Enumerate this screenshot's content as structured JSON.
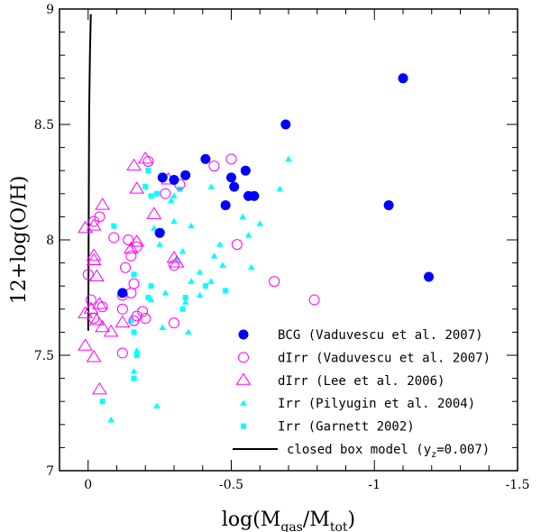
{
  "chart_data": {
    "type": "scatter",
    "title": "",
    "xlabel": "log(M_gas/M_tot)",
    "ylabel": "12+log(O/H)",
    "xlim": [
      0.1,
      -1.5
    ],
    "ylim": [
      7,
      9
    ],
    "x_ticks": [
      0,
      -0.5,
      -1,
      -1.5
    ],
    "x_tick_labels": [
      "0",
      "-0.5",
      "-1",
      "-1.5"
    ],
    "y_ticks": [
      7,
      7.5,
      8,
      8.5,
      9
    ],
    "y_tick_labels": [
      "7",
      "7.5",
      "8",
      "8.5",
      "9"
    ],
    "grid": false,
    "legend_position": "bottom-right",
    "colors": {
      "bcg": "#0000ff",
      "dirr": "#ff00ff",
      "cyan": "#00ffff",
      "model": "#000000"
    },
    "series": [
      {
        "name": "BCG (Vaduvescu et al. 2007)",
        "marker": "filled-circle",
        "color": "#0000ff",
        "points": [
          [
            -1.1,
            8.7
          ],
          [
            -0.69,
            8.5
          ],
          [
            -1.05,
            8.15
          ],
          [
            -1.19,
            7.84
          ],
          [
            -0.41,
            8.35
          ],
          [
            -0.55,
            8.3
          ],
          [
            -0.5,
            8.27
          ],
          [
            -0.51,
            8.23
          ],
          [
            -0.56,
            8.19
          ],
          [
            -0.58,
            8.19
          ],
          [
            -0.48,
            8.15
          ],
          [
            -0.34,
            8.28
          ],
          [
            -0.26,
            8.27
          ],
          [
            -0.3,
            8.26
          ],
          [
            -0.25,
            8.03
          ],
          [
            -0.12,
            7.77
          ]
        ]
      },
      {
        "name": "dIrr (Vaduvescu et al. 2007)",
        "marker": "open-circle",
        "color": "#ff00ff",
        "points": [
          [
            -0.5,
            8.35
          ],
          [
            -0.44,
            8.32
          ],
          [
            -0.21,
            8.34
          ],
          [
            -0.32,
            8.24
          ],
          [
            -0.27,
            8.2
          ],
          [
            -0.04,
            8.1
          ],
          [
            -0.02,
            8.08
          ],
          [
            -0.09,
            8.01
          ],
          [
            -0.14,
            8.0
          ],
          [
            -0.17,
            7.97
          ],
          [
            -0.52,
            7.98
          ],
          [
            -0.15,
            7.93
          ],
          [
            -0.3,
            7.89
          ],
          [
            -0.13,
            7.88
          ],
          [
            0.0,
            7.85
          ],
          [
            -0.16,
            7.81
          ],
          [
            -0.15,
            7.77
          ],
          [
            -0.12,
            7.76
          ],
          [
            -0.01,
            7.74
          ],
          [
            -0.05,
            7.71
          ],
          [
            -0.12,
            7.7
          ],
          [
            -0.19,
            7.69
          ],
          [
            -0.17,
            7.67
          ],
          [
            -0.2,
            7.66
          ],
          [
            -0.16,
            7.65
          ],
          [
            -0.02,
            7.66
          ],
          [
            -0.3,
            7.64
          ],
          [
            -0.65,
            7.82
          ],
          [
            -0.79,
            7.74
          ],
          [
            -0.12,
            7.51
          ]
        ]
      },
      {
        "name": "dIrr (Lee et al. 2006)",
        "marker": "open-triangle",
        "color": "#ff00ff",
        "points": [
          [
            -0.2,
            8.35
          ],
          [
            -0.16,
            8.32
          ],
          [
            -0.28,
            8.26
          ],
          [
            -0.17,
            8.22
          ],
          [
            -0.05,
            8.15
          ],
          [
            -0.23,
            8.11
          ],
          [
            0.01,
            8.05
          ],
          [
            -0.02,
            8.06
          ],
          [
            -0.17,
            7.99
          ],
          [
            -0.15,
            7.96
          ],
          [
            -0.02,
            7.93
          ],
          [
            -0.02,
            7.91
          ],
          [
            -0.03,
            7.84
          ],
          [
            -0.3,
            7.92
          ],
          [
            -0.31,
            7.9
          ],
          [
            -0.04,
            7.72
          ],
          [
            -0.01,
            7.7
          ],
          [
            0.01,
            7.68
          ],
          [
            -0.03,
            7.65
          ],
          [
            -0.05,
            7.62
          ],
          [
            -0.08,
            7.6
          ],
          [
            -0.12,
            7.64
          ],
          [
            0.01,
            7.54
          ],
          [
            -0.02,
            7.49
          ],
          [
            -0.04,
            7.35
          ]
        ]
      },
      {
        "name": "Irr (Pilyugin et al. 2004)",
        "marker": "filled-triangle",
        "color": "#00ffff",
        "points": [
          [
            -0.7,
            8.35
          ],
          [
            -0.67,
            8.22
          ],
          [
            -0.43,
            8.23
          ],
          [
            -0.3,
            8.19
          ],
          [
            -0.29,
            8.17
          ],
          [
            -0.3,
            8.08
          ],
          [
            -0.36,
            8.06
          ],
          [
            -0.26,
            8.04
          ],
          [
            -0.23,
            8.05
          ],
          [
            -0.54,
            8.1
          ],
          [
            -0.6,
            8.07
          ],
          [
            -0.46,
            7.98
          ],
          [
            -0.25,
            7.98
          ],
          [
            -0.33,
            7.95
          ],
          [
            -0.31,
            7.92
          ],
          [
            -0.44,
            7.93
          ],
          [
            -0.56,
            8.02
          ],
          [
            -0.47,
            7.89
          ],
          [
            -0.57,
            7.88
          ],
          [
            -0.39,
            7.86
          ],
          [
            -0.36,
            7.82
          ],
          [
            -0.43,
            7.82
          ],
          [
            -0.27,
            7.77
          ],
          [
            -0.39,
            7.76
          ],
          [
            -0.22,
            7.74
          ],
          [
            -0.34,
            7.73
          ],
          [
            -0.15,
            7.65
          ],
          [
            -0.26,
            7.62
          ],
          [
            -0.35,
            7.6
          ],
          [
            -0.17,
            7.52
          ],
          [
            -0.24,
            7.28
          ],
          [
            -0.16,
            7.43
          ],
          [
            -0.08,
            7.22
          ]
        ]
      },
      {
        "name": "Irr (Garnett 2002)",
        "marker": "filled-square",
        "color": "#00ffff",
        "points": [
          [
            -0.21,
            8.3
          ],
          [
            -0.24,
            8.2
          ],
          [
            -0.2,
            8.23
          ],
          [
            -0.22,
            8.19
          ],
          [
            -0.32,
            8.22
          ],
          [
            -0.09,
            8.06
          ],
          [
            -0.16,
            7.85
          ],
          [
            -0.22,
            7.8
          ],
          [
            -0.34,
            7.75
          ],
          [
            -0.41,
            7.8
          ],
          [
            -0.48,
            7.78
          ],
          [
            -0.21,
            7.75
          ],
          [
            -0.16,
            7.6
          ],
          [
            -0.17,
            7.5
          ],
          [
            -0.16,
            7.4
          ],
          [
            -0.05,
            7.3
          ],
          [
            -0.33,
            7.7
          ]
        ]
      },
      {
        "name": "closed box model (y_z=0.007)",
        "marker": "line",
        "color": "#000000",
        "y_z": 0.007
      }
    ],
    "legend": [
      {
        "label": "BCG (Vaduvescu et al. 2007)",
        "marker": "filled-circle",
        "color": "#0000ff"
      },
      {
        "label": "dIrr (Vaduvescu et al. 2007)",
        "marker": "open-circle",
        "color": "#ff00ff"
      },
      {
        "label": "dIrr (Lee et al. 2006)",
        "marker": "open-triangle",
        "color": "#ff00ff"
      },
      {
        "label": "Irr (Pilyugin et al. 2004)",
        "marker": "filled-triangle",
        "color": "#00ffff"
      },
      {
        "label": "Irr (Garnett 2002)",
        "marker": "filled-square",
        "color": "#00ffff"
      },
      {
        "label": "closed box model (y",
        "label_sub": "z",
        "label_after": "=0.007)",
        "marker": "line",
        "color": "#000000"
      }
    ],
    "axis_label_parts": {
      "x": {
        "pre": "log(M",
        "sub1": "gas",
        "mid": "/M",
        "sub2": "tot",
        "post": ")"
      },
      "y": "12+log(O/H)"
    }
  }
}
